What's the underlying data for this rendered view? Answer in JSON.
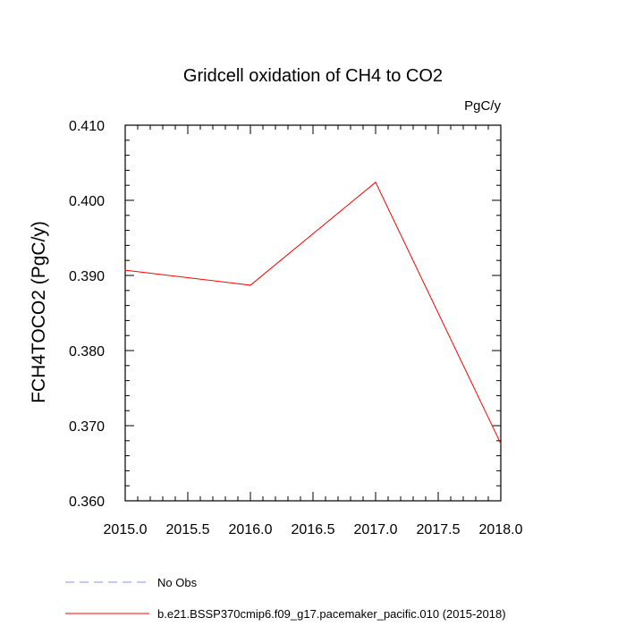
{
  "chart_data": {
    "type": "line",
    "title": "Gridcell oxidation of CH4 to CO2",
    "units_label": "PgC/y",
    "ylabel": "FCH4TOCO2  (PgC/y)",
    "xlabel": "",
    "xlim": [
      2015.0,
      2018.0
    ],
    "ylim": [
      0.36,
      0.41
    ],
    "xticks": [
      "2015.0",
      "2015.5",
      "2016.0",
      "2016.5",
      "2017.0",
      "2017.5",
      "2018.0"
    ],
    "yticks": [
      "0.360",
      "0.370",
      "0.380",
      "0.390",
      "0.400",
      "0.410"
    ],
    "grid": false,
    "series": [
      {
        "name": "b.e21.BSSP370cmip6.f09_g17.pacemaker_pacific.010 (2015-2018)",
        "color": "#ff0000",
        "dash": "solid",
        "x": [
          2015.0,
          2016.0,
          2017.0,
          2018.0
        ],
        "values": [
          0.3907,
          0.3887,
          0.4024,
          0.3676
        ]
      }
    ],
    "legend": [
      {
        "label": "No Obs",
        "color": "#8c8cff",
        "dash": "dashed"
      },
      {
        "label": "b.e21.BSSP370cmip6.f09_g17.pacemaker_pacific.010 (2015-2018)",
        "color": "#ff0000",
        "dash": "solid"
      }
    ],
    "legend_position": "bottom"
  }
}
